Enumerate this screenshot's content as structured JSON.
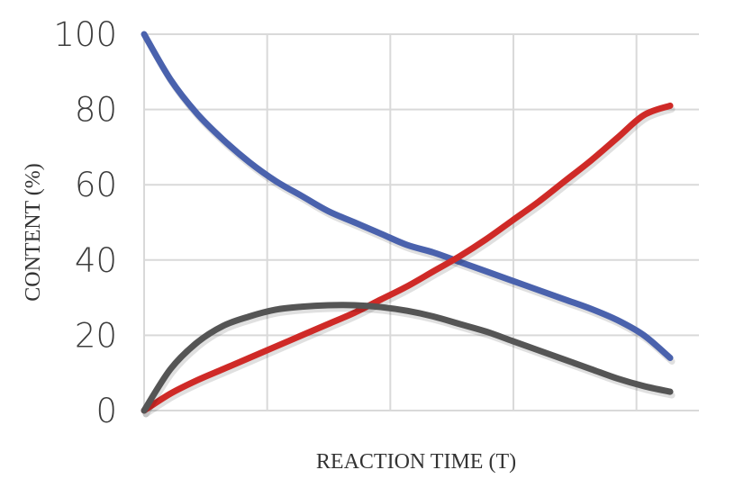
{
  "chart_data": {
    "type": "line",
    "title": "",
    "xlabel": "REACTION TIME (T)",
    "ylabel": "CONTENT (%)",
    "ylim": [
      0,
      100
    ],
    "xlim": [
      0,
      10
    ],
    "yticks": [
      "0",
      "20",
      "40",
      "60",
      "80",
      "100"
    ],
    "xgrid": [
      0,
      2.34,
      4.68,
      7.02,
      9.36
    ],
    "grid": true,
    "legend": "none",
    "series": [
      {
        "color": "#4a62ad",
        "x": [
          0,
          0.5,
          1,
          1.5,
          2,
          2.5,
          3,
          3.5,
          4,
          4.5,
          5,
          5.5,
          6,
          6.5,
          7,
          7.5,
          8,
          8.5,
          9,
          9.5,
          10
        ],
        "values": [
          100,
          88,
          79,
          72,
          66,
          61,
          57,
          53,
          50,
          47,
          44,
          42,
          39.5,
          37,
          34.5,
          32,
          29.5,
          27,
          24,
          20,
          14
        ]
      },
      {
        "color": "#cf2a27",
        "x": [
          0,
          0.5,
          1,
          1.5,
          2,
          2.5,
          3,
          3.5,
          4,
          4.5,
          5,
          5.5,
          6,
          6.5,
          7,
          7.5,
          8,
          8.5,
          9,
          9.5,
          10
        ],
        "values": [
          0,
          4.5,
          8,
          11,
          14,
          17,
          20,
          23,
          26,
          29.5,
          33,
          37,
          41,
          45.5,
          50.5,
          55.5,
          61,
          66.5,
          72.5,
          78.5,
          81
        ]
      },
      {
        "color": "#555555",
        "x": [
          0,
          0.5,
          1,
          1.5,
          2,
          2.5,
          3,
          3.5,
          4,
          4.5,
          5,
          5.5,
          6,
          6.5,
          7,
          7.5,
          8,
          8.5,
          9,
          9.5,
          10
        ],
        "values": [
          0,
          11,
          18,
          22.5,
          25,
          26.8,
          27.6,
          28,
          28,
          27.5,
          26.5,
          25,
          23,
          21,
          18.5,
          16,
          13.5,
          11,
          8.5,
          6.5,
          5
        ]
      }
    ]
  }
}
